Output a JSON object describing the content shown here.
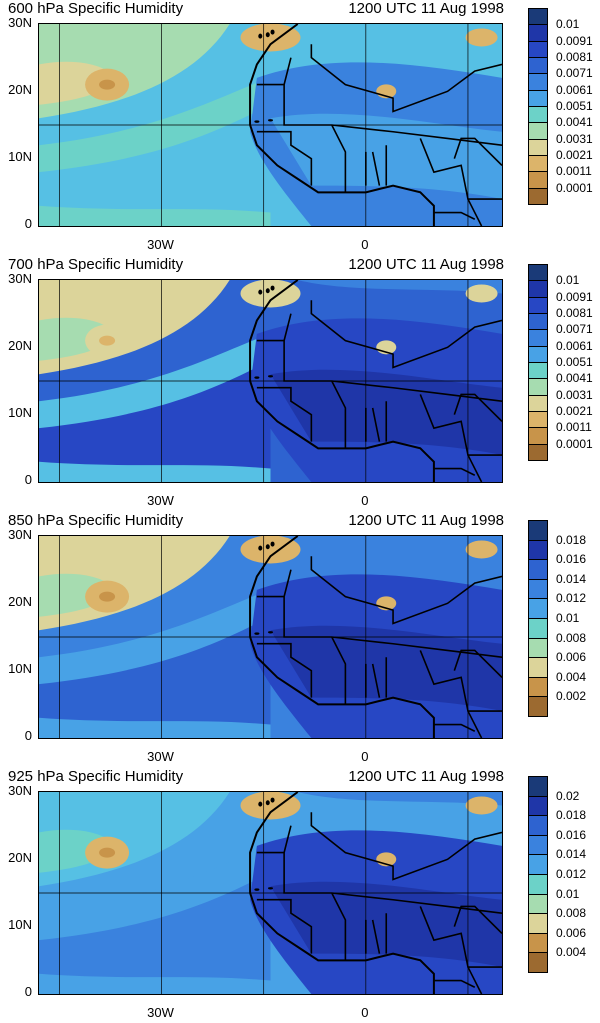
{
  "panels": [
    {
      "title": "600 hPa Specific Humidity",
      "date": "1200 UTC 11 Aug 1998",
      "lat_labels": [
        "30N",
        "20N",
        "10N",
        "0"
      ],
      "lon_labels": [
        "30W",
        "0"
      ],
      "colorbar": [
        "0.01",
        "0.0091",
        "0.0081",
        "0.0071",
        "0.0061",
        "0.0051",
        "0.0041",
        "0.0031",
        "0.0021",
        "0.0011",
        "0.0001"
      ],
      "theme": "dry"
    },
    {
      "title": "700 hPa Specific Humidity",
      "date": "1200 UTC 11 Aug 1998",
      "lat_labels": [
        "30N",
        "20N",
        "10N",
        "0"
      ],
      "lon_labels": [
        "30W",
        "0"
      ],
      "colorbar": [
        "0.01",
        "0.0091",
        "0.0081",
        "0.0071",
        "0.0061",
        "0.0051",
        "0.0041",
        "0.0031",
        "0.0021",
        "0.0011",
        "0.0001"
      ],
      "theme": "moist"
    },
    {
      "title": "850 hPa Specific Humidity",
      "date": "1200 UTC 11 Aug 1998",
      "lat_labels": [
        "30N",
        "20N",
        "10N",
        "0"
      ],
      "lon_labels": [
        "30W",
        "0"
      ],
      "colorbar": [
        "0.018",
        "0.016",
        "0.014",
        "0.012",
        "0.01",
        "0.008",
        "0.006",
        "0.004",
        "0.002"
      ],
      "theme": "low"
    },
    {
      "title": "925 hPa Specific Humidity",
      "date": "1200 UTC 11 Aug 1998",
      "lat_labels": [
        "30N",
        "20N",
        "10N",
        "0"
      ],
      "lon_labels": [
        "30W",
        "0"
      ],
      "colorbar": [
        "0.02",
        "0.018",
        "0.016",
        "0.014",
        "0.012",
        "0.01",
        "0.008",
        "0.006",
        "0.004"
      ],
      "theme": "surface"
    }
  ],
  "palette": [
    "#1a3a78",
    "#1f36a8",
    "#2747c4",
    "#2e63d0",
    "#3a82de",
    "#48a2e6",
    "#56c0e4",
    "#6cd2c8",
    "#a6dcb0",
    "#dcd49a",
    "#dcb46a",
    "#c8944a",
    "#9c6a30"
  ]
}
